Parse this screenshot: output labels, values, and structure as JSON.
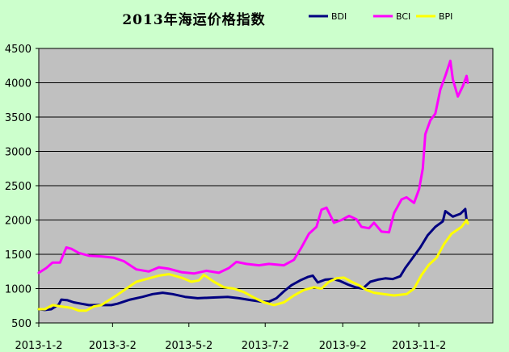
{
  "chart_data": {
    "type": "line",
    "title": "2013年海运价格指数",
    "xlabel": "",
    "ylabel": "",
    "ylim": [
      500,
      4500
    ],
    "yticks": [
      500,
      1000,
      1500,
      2000,
      2500,
      3000,
      3500,
      4000,
      4500
    ],
    "xlim": [
      "2013-01-02",
      "2013-12-31"
    ],
    "xtick_labels": [
      "2013-1-2",
      "2013-3-2",
      "2013-5-2",
      "2013-7-2",
      "2013-9-2",
      "2013-11-2"
    ],
    "xtick_dates": [
      "2013-01-02",
      "2013-03-02",
      "2013-05-02",
      "2013-07-02",
      "2013-09-02",
      "2013-11-02"
    ],
    "grid": "horizontal",
    "legend_position": "top-right",
    "colors": {
      "plot_background": "#c0c0c0",
      "page_background": "#ccffcc"
    },
    "series": [
      {
        "name": "BDI",
        "color": "#000080",
        "points": [
          [
            "2013-01-02",
            700
          ],
          [
            "2013-01-07",
            690
          ],
          [
            "2013-01-12",
            700
          ],
          [
            "2013-01-18",
            770
          ],
          [
            "2013-01-20",
            840
          ],
          [
            "2013-01-25",
            830
          ],
          [
            "2013-01-30",
            800
          ],
          [
            "2013-02-05",
            780
          ],
          [
            "2013-02-11",
            760
          ],
          [
            "2013-02-20",
            760
          ],
          [
            "2013-03-01",
            760
          ],
          [
            "2013-03-06",
            780
          ],
          [
            "2013-03-16",
            840
          ],
          [
            "2013-03-26",
            880
          ],
          [
            "2013-04-03",
            920
          ],
          [
            "2013-04-11",
            940
          ],
          [
            "2013-04-19",
            920
          ],
          [
            "2013-04-29",
            880
          ],
          [
            "2013-05-09",
            860
          ],
          [
            "2013-05-20",
            870
          ],
          [
            "2013-06-02",
            880
          ],
          [
            "2013-06-11",
            860
          ],
          [
            "2013-06-21",
            830
          ],
          [
            "2013-06-29",
            810
          ],
          [
            "2013-07-05",
            810
          ],
          [
            "2013-07-11",
            860
          ],
          [
            "2013-07-17",
            960
          ],
          [
            "2013-07-23",
            1050
          ],
          [
            "2013-07-30",
            1120
          ],
          [
            "2013-08-05",
            1170
          ],
          [
            "2013-08-09",
            1190
          ],
          [
            "2013-08-13",
            1090
          ],
          [
            "2013-08-19",
            1130
          ],
          [
            "2013-08-25",
            1140
          ],
          [
            "2013-08-31",
            1110
          ],
          [
            "2013-09-06",
            1060
          ],
          [
            "2013-09-12",
            1020
          ],
          [
            "2013-09-18",
            1000
          ],
          [
            "2013-09-24",
            1100
          ],
          [
            "2013-09-30",
            1130
          ],
          [
            "2013-10-06",
            1150
          ],
          [
            "2013-10-12",
            1140
          ],
          [
            "2013-10-18",
            1180
          ],
          [
            "2013-10-22",
            1300
          ],
          [
            "2013-10-28",
            1450
          ],
          [
            "2013-11-03",
            1600
          ],
          [
            "2013-11-09",
            1780
          ],
          [
            "2013-11-15",
            1900
          ],
          [
            "2013-11-21",
            1980
          ],
          [
            "2013-11-23",
            2130
          ],
          [
            "2013-11-29",
            2050
          ],
          [
            "2013-12-05",
            2090
          ],
          [
            "2013-12-09",
            2160
          ],
          [
            "2013-12-10",
            2000
          ]
        ]
      },
      {
        "name": "BCI",
        "color": "#ff00ff",
        "points": [
          [
            "2013-01-02",
            1230
          ],
          [
            "2013-01-08",
            1300
          ],
          [
            "2013-01-13",
            1380
          ],
          [
            "2013-01-19",
            1380
          ],
          [
            "2013-01-24",
            1600
          ],
          [
            "2013-01-28",
            1580
          ],
          [
            "2013-02-03",
            1520
          ],
          [
            "2013-02-11",
            1480
          ],
          [
            "2013-02-21",
            1470
          ],
          [
            "2013-03-03",
            1450
          ],
          [
            "2013-03-11",
            1400
          ],
          [
            "2013-03-21",
            1280
          ],
          [
            "2013-03-31",
            1250
          ],
          [
            "2013-04-08",
            1310
          ],
          [
            "2013-04-16",
            1290
          ],
          [
            "2013-04-26",
            1240
          ],
          [
            "2013-05-06",
            1220
          ],
          [
            "2013-05-16",
            1260
          ],
          [
            "2013-05-26",
            1230
          ],
          [
            "2013-06-03",
            1300
          ],
          [
            "2013-06-09",
            1390
          ],
          [
            "2013-06-17",
            1360
          ],
          [
            "2013-06-27",
            1340
          ],
          [
            "2013-07-05",
            1360
          ],
          [
            "2013-07-11",
            1350
          ],
          [
            "2013-07-17",
            1340
          ],
          [
            "2013-07-25",
            1420
          ],
          [
            "2013-07-31",
            1600
          ],
          [
            "2013-08-06",
            1800
          ],
          [
            "2013-08-12",
            1900
          ],
          [
            "2013-08-16",
            2150
          ],
          [
            "2013-08-20",
            2180
          ],
          [
            "2013-08-26",
            1960
          ],
          [
            "2013-09-01",
            2000
          ],
          [
            "2013-09-07",
            2060
          ],
          [
            "2013-09-13",
            2010
          ],
          [
            "2013-09-17",
            1900
          ],
          [
            "2013-09-23",
            1880
          ],
          [
            "2013-09-27",
            1960
          ],
          [
            "2013-10-03",
            1830
          ],
          [
            "2013-10-09",
            1820
          ],
          [
            "2013-10-13",
            2100
          ],
          [
            "2013-10-19",
            2300
          ],
          [
            "2013-10-23",
            2330
          ],
          [
            "2013-10-29",
            2250
          ],
          [
            "2013-11-02",
            2450
          ],
          [
            "2013-11-05",
            2750
          ],
          [
            "2013-11-07",
            3250
          ],
          [
            "2013-11-11",
            3450
          ],
          [
            "2013-11-15",
            3550
          ],
          [
            "2013-11-19",
            3900
          ],
          [
            "2013-11-23",
            4100
          ],
          [
            "2013-11-27",
            4320
          ],
          [
            "2013-11-29",
            4050
          ],
          [
            "2013-12-03",
            3800
          ],
          [
            "2013-12-07",
            3950
          ],
          [
            "2013-12-10",
            4100
          ],
          [
            "2013-12-11",
            4000
          ]
        ]
      },
      {
        "name": "BPI",
        "color": "#ffff00",
        "points": [
          [
            "2013-01-02",
            700
          ],
          [
            "2013-01-07",
            700
          ],
          [
            "2013-01-13",
            760
          ],
          [
            "2013-01-20",
            740
          ],
          [
            "2013-01-28",
            720
          ],
          [
            "2013-02-03",
            680
          ],
          [
            "2013-02-09",
            680
          ],
          [
            "2013-02-15",
            740
          ],
          [
            "2013-02-21",
            760
          ],
          [
            "2013-02-27",
            830
          ],
          [
            "2013-03-05",
            900
          ],
          [
            "2013-03-13",
            1000
          ],
          [
            "2013-03-21",
            1100
          ],
          [
            "2013-03-31",
            1150
          ],
          [
            "2013-04-08",
            1190
          ],
          [
            "2013-04-16",
            1210
          ],
          [
            "2013-04-26",
            1160
          ],
          [
            "2013-05-04",
            1100
          ],
          [
            "2013-05-10",
            1120
          ],
          [
            "2013-05-14",
            1200
          ],
          [
            "2013-05-22",
            1100
          ],
          [
            "2013-05-30",
            1020
          ],
          [
            "2013-06-07",
            1000
          ],
          [
            "2013-06-15",
            950
          ],
          [
            "2013-06-23",
            870
          ],
          [
            "2013-07-01",
            800
          ],
          [
            "2013-07-09",
            760
          ],
          [
            "2013-07-17",
            800
          ],
          [
            "2013-07-25",
            900
          ],
          [
            "2013-08-02",
            980
          ],
          [
            "2013-08-10",
            1020
          ],
          [
            "2013-08-16",
            1000
          ],
          [
            "2013-08-22",
            1100
          ],
          [
            "2013-08-28",
            1150
          ],
          [
            "2013-09-03",
            1160
          ],
          [
            "2013-09-09",
            1100
          ],
          [
            "2013-09-15",
            1050
          ],
          [
            "2013-09-21",
            980
          ],
          [
            "2013-09-27",
            940
          ],
          [
            "2013-10-05",
            920
          ],
          [
            "2013-10-13",
            900
          ],
          [
            "2013-10-23",
            920
          ],
          [
            "2013-10-29",
            1000
          ],
          [
            "2013-11-04",
            1200
          ],
          [
            "2013-11-10",
            1350
          ],
          [
            "2013-11-16",
            1450
          ],
          [
            "2013-11-22",
            1650
          ],
          [
            "2013-11-28",
            1800
          ],
          [
            "2013-12-02",
            1850
          ],
          [
            "2013-12-06",
            1900
          ],
          [
            "2013-12-10",
            2000
          ],
          [
            "2013-12-11",
            1950
          ]
        ]
      }
    ]
  }
}
